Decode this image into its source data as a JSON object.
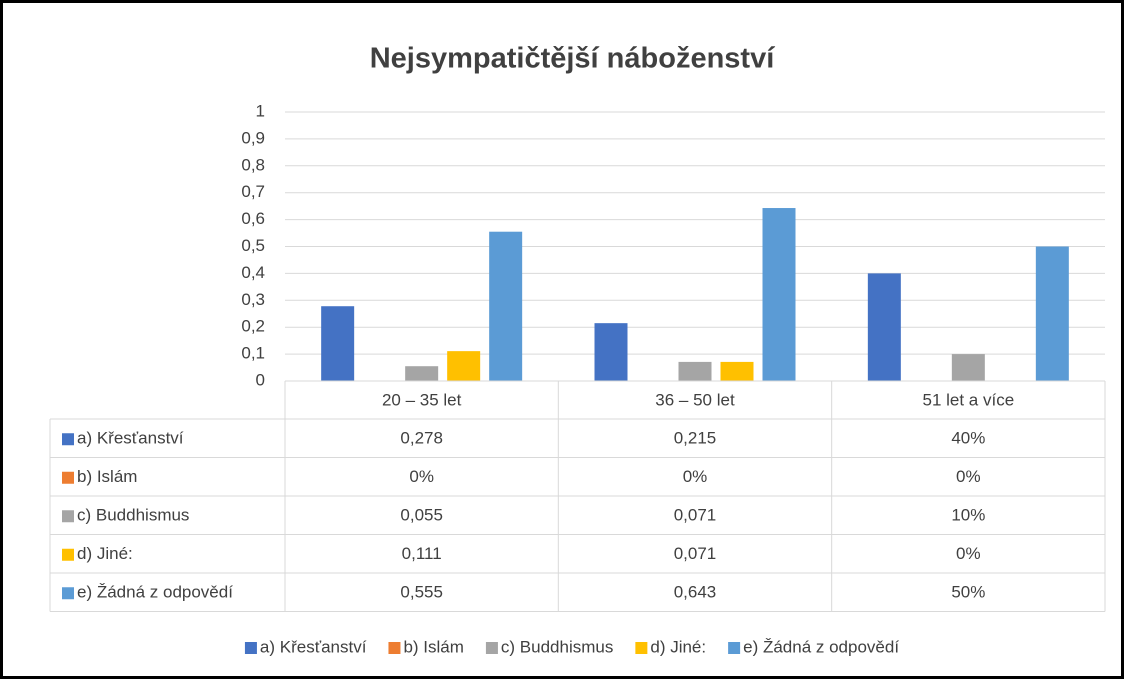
{
  "chart_data": {
    "type": "bar",
    "title": "Nejsympatičtější náboženství",
    "categories": [
      "20 – 35 let",
      "36 – 50 let",
      "51 let a více"
    ],
    "series": [
      {
        "name": "a) Křesťanství",
        "color": "#4472c4",
        "values": [
          0.278,
          0.215,
          0.4
        ],
        "value_labels": [
          "0,278",
          "0,215",
          "40%"
        ]
      },
      {
        "name": "b) Islám",
        "color": "#ed7d31",
        "values": [
          0,
          0,
          0
        ],
        "value_labels": [
          "0%",
          "0%",
          "0%"
        ]
      },
      {
        "name": "c) Buddhismus",
        "color": "#a5a5a5",
        "values": [
          0.055,
          0.071,
          0.1
        ],
        "value_labels": [
          "0,055",
          "0,071",
          "10%"
        ]
      },
      {
        "name": "d) Jiné:",
        "color": "#ffc000",
        "values": [
          0.111,
          0.071,
          0
        ],
        "value_labels": [
          "0,111",
          "0,071",
          "0%"
        ]
      },
      {
        "name": "e) Žádná z odpovědí",
        "color": "#5b9bd5",
        "values": [
          0.555,
          0.643,
          0.5
        ],
        "value_labels": [
          "0,555",
          "0,643",
          "50%"
        ]
      }
    ],
    "ylim": [
      0,
      1
    ],
    "yticks": [
      0,
      {
        "value": 0.1,
        "label": "0,1"
      },
      {
        "value": 0.2,
        "label": "0,2"
      },
      {
        "value": 0.3,
        "label": "0,3"
      },
      {
        "value": 0.4,
        "label": "0,4"
      },
      {
        "value": 0.5,
        "label": "0,5"
      },
      {
        "value": 0.6,
        "label": "0,6"
      },
      {
        "value": 0.7,
        "label": "0,7"
      },
      {
        "value": 0.8,
        "label": "0,8"
      },
      {
        "value": 0.9,
        "label": "0,9"
      },
      1
    ],
    "grid": true,
    "legend": "bottom"
  }
}
